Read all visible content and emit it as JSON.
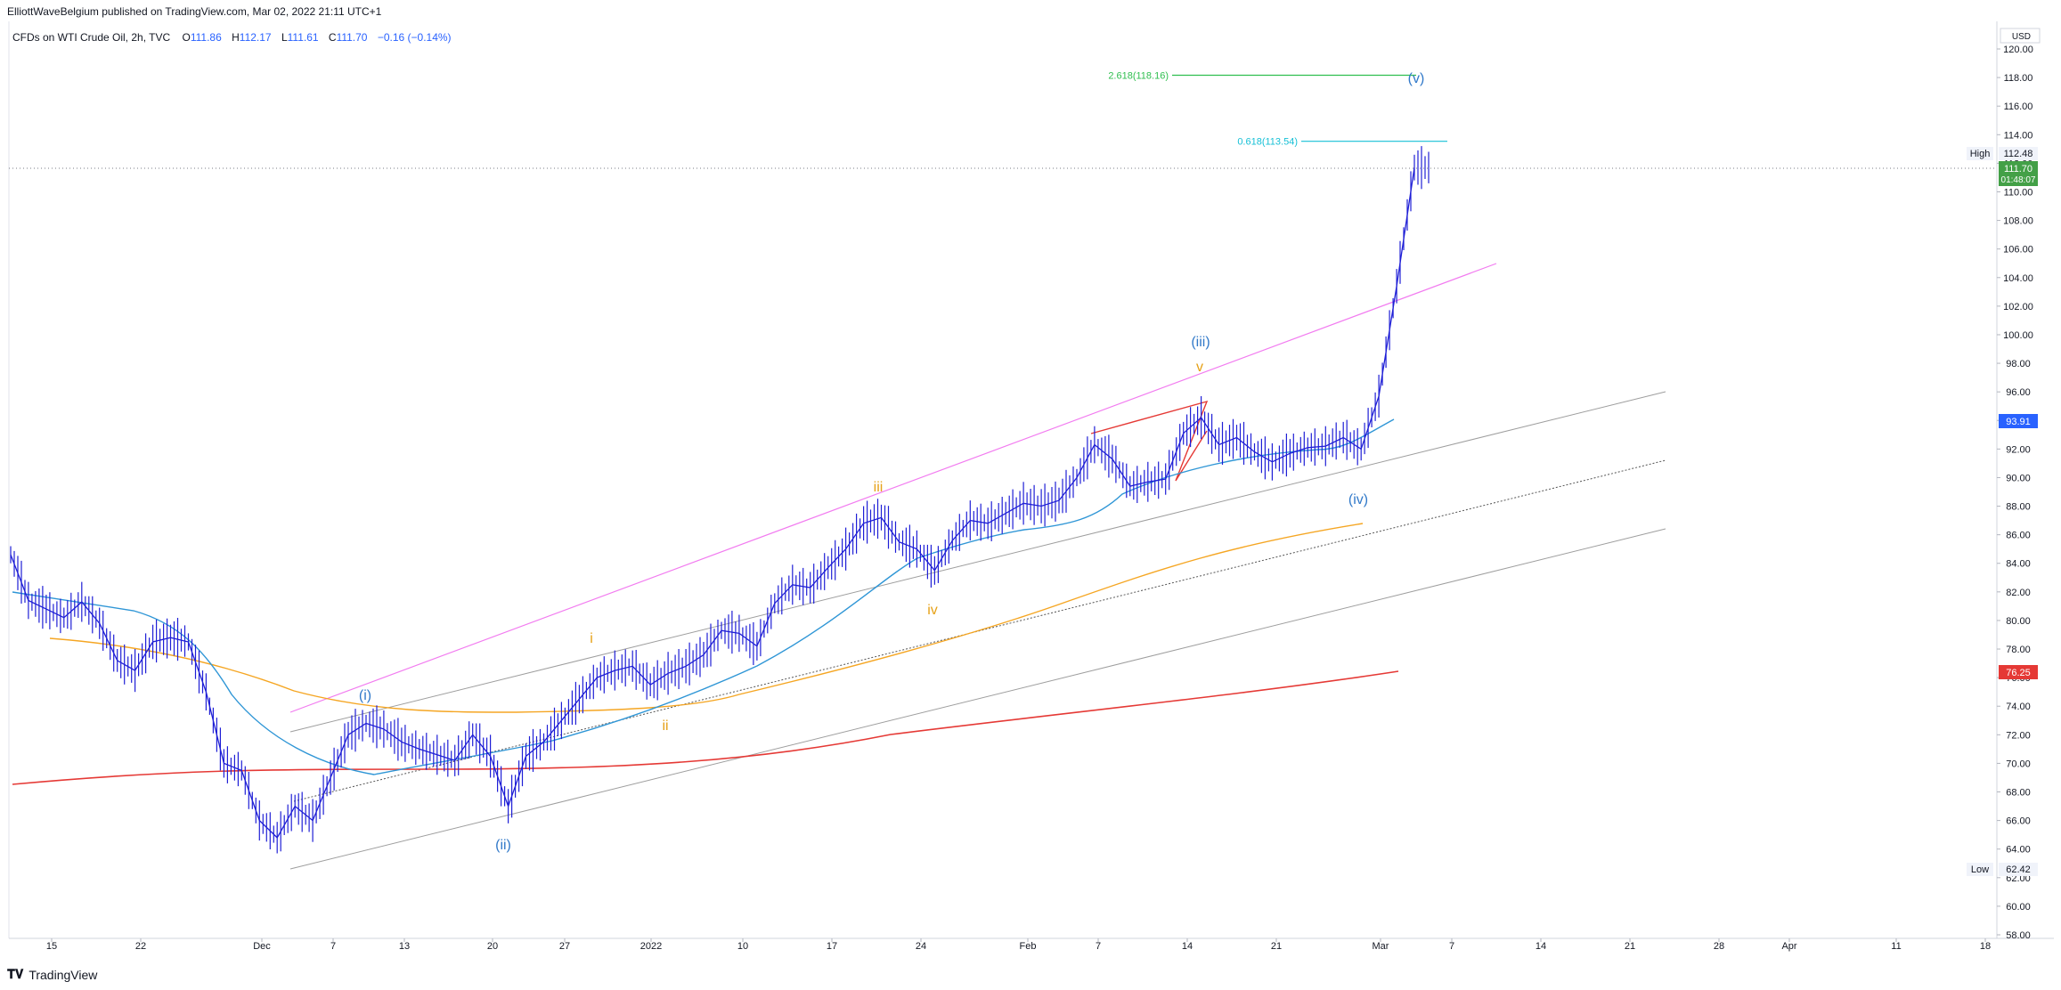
{
  "header": {
    "published": "ElliottWaveBelgium published on TradingView.com, Mar 02, 2022 21:11 UTC+1",
    "symbol": "CFDs on WTI Crude Oil, 2h, TVC",
    "o_label": "O",
    "o": "111.86",
    "h_label": "H",
    "h": "112.17",
    "l_label": "L",
    "l": "111.61",
    "c_label": "C",
    "c": "111.70",
    "change": "−0.16 (−0.14%)"
  },
  "footer": {
    "brand": "TradingView",
    "brand_icon": "tradingview-logo-icon"
  },
  "colors": {
    "candles": "#1f1fd6",
    "ema_blue": "#2f96d6",
    "ma_orange": "#f5a623",
    "ma_red": "#e53935",
    "channel_upper": "#f27cf0",
    "channel_gray": "#9e9e9e",
    "fib_green": "#2fbf4f",
    "fib_cyan": "#16c0d6",
    "label_blue": "#3179c9",
    "label_orange": "#e6a117",
    "price_badge": "#43a047",
    "red_badge": "#e53935",
    "blue_badge": "#2962ff"
  },
  "chart_data": {
    "type": "line",
    "title": "CFDs on WTI Crude Oil, 2h, TVC",
    "currency": "USD",
    "x_axis_ticks": [
      "15",
      "22",
      "Dec",
      "7",
      "13",
      "20",
      "27",
      "2022",
      "10",
      "17",
      "24",
      "Feb",
      "7",
      "14",
      "21",
      "Mar",
      "7",
      "14",
      "21",
      "28",
      "Apr",
      "11",
      "18"
    ],
    "y_axis_ticks": [
      "120.00",
      "118.00",
      "116.00",
      "114.00",
      "112.00",
      "110.00",
      "108.00",
      "106.00",
      "104.00",
      "102.00",
      "100.00",
      "98.00",
      "96.00",
      "94.00",
      "92.00",
      "90.00",
      "88.00",
      "86.00",
      "84.00",
      "82.00",
      "80.00",
      "78.00",
      "76.00",
      "74.00",
      "72.00",
      "70.00",
      "68.00",
      "66.00",
      "64.00",
      "62.00",
      "60.00",
      "58.00"
    ],
    "ylim": [
      57.5,
      121.5
    ],
    "grid": false,
    "series": [
      {
        "values_key": "price",
        "points": [
          [
            "Nov 10",
            84.6
          ],
          [
            "Nov 11",
            81.4
          ],
          [
            "Nov 14",
            80.8
          ],
          [
            "Nov 16",
            80.2
          ],
          [
            "Nov 17",
            81.3
          ],
          [
            "Nov 18",
            79.8
          ],
          [
            "Nov 19",
            77.2
          ],
          [
            "Nov 22",
            76.5
          ],
          [
            "Nov 23",
            78.5
          ],
          [
            "Nov 24",
            78.8
          ],
          [
            "Nov 25",
            78.5
          ],
          [
            "Nov 26",
            75.0
          ],
          [
            "Nov 26b",
            70.0
          ],
          [
            "Nov 29",
            69.5
          ],
          [
            "Nov 30",
            66.0
          ],
          [
            "Dec 1",
            64.8
          ],
          [
            "Dec 2",
            67.0
          ],
          [
            "Dec 3",
            66.0
          ],
          [
            "Dec 6",
            69.0
          ],
          [
            "Dec 7",
            72.0
          ],
          [
            "Dec 8",
            72.8
          ],
          [
            "Dec 9",
            72.4
          ],
          [
            "Dec 10",
            71.5
          ],
          [
            "Dec 13",
            71.0
          ],
          [
            "Dec 14",
            70.6
          ],
          [
            "Dec 15",
            70.2
          ],
          [
            "Dec 16",
            72.0
          ],
          [
            "Dec 17",
            70.5
          ],
          [
            "Dec 20",
            67.0
          ],
          [
            "Dec 21",
            70.5
          ],
          [
            "Dec 22",
            71.5
          ],
          [
            "Dec 23",
            73.0
          ],
          [
            "Dec 27",
            74.5
          ],
          [
            "Dec 28",
            76.0
          ],
          [
            "Dec 29",
            76.5
          ],
          [
            "Dec 30",
            76.8
          ],
          [
            "Dec 31",
            75.5
          ],
          [
            "Jan 3",
            76.3
          ],
          [
            "Jan 4",
            76.8
          ],
          [
            "Jan 5",
            77.6
          ],
          [
            "Jan 6",
            79.3
          ],
          [
            "Jan 7",
            79.1
          ],
          [
            "Jan 10",
            78.2
          ],
          [
            "Jan 11",
            81.2
          ],
          [
            "Jan 12",
            82.5
          ],
          [
            "Jan 13",
            82.3
          ],
          [
            "Jan 14",
            83.7
          ],
          [
            "Jan 17",
            85.0
          ],
          [
            "Jan 18",
            86.8
          ],
          [
            "Jan 19",
            87.2
          ],
          [
            "Jan 20",
            85.5
          ],
          [
            "Jan 21",
            85.0
          ],
          [
            "Jan 24",
            83.5
          ],
          [
            "Jan 25",
            85.6
          ],
          [
            "Jan 26",
            87.0
          ],
          [
            "Jan 27",
            86.8
          ],
          [
            "Jan 28",
            87.5
          ],
          [
            "Jan 31",
            88.2
          ],
          [
            "Feb 1",
            88.0
          ],
          [
            "Feb 2",
            88.4
          ],
          [
            "Feb 3",
            90.0
          ],
          [
            "Feb 4",
            92.3
          ],
          [
            "Feb 7",
            91.3
          ],
          [
            "Feb 8",
            89.4
          ],
          [
            "Feb 9",
            89.7
          ],
          [
            "Feb 10",
            89.9
          ],
          [
            "Feb 11",
            93.1
          ],
          [
            "Feb 14",
            94.2
          ],
          [
            "Feb 15",
            92.3
          ],
          [
            "Feb 16",
            92.8
          ],
          [
            "Feb 17",
            91.8
          ],
          [
            "Feb 18",
            91.1
          ],
          [
            "Feb 21",
            91.7
          ],
          [
            "Feb 22",
            92.1
          ],
          [
            "Feb 23",
            92.2
          ],
          [
            "Feb 24",
            92.8
          ],
          [
            "Feb 25",
            92.0
          ],
          [
            "Feb 28",
            95.7
          ],
          [
            "Mar 1",
            103.4
          ],
          [
            "Mar 2",
            111.7
          ]
        ]
      }
    ],
    "price_levels": {
      "high_label": "High",
      "high": "112.48",
      "current": "111.70",
      "countdown": "01:48:07",
      "ema_value": "93.91",
      "ma_red_value": "76.25",
      "low_label": "Low",
      "low": "62.42"
    },
    "fib_levels": [
      {
        "label": "2.618(118.16)",
        "value": 118.16
      },
      {
        "label": "0.618(113.54)",
        "value": 113.54
      }
    ],
    "wave_labels": [
      {
        "text": "(i)",
        "color": "blue"
      },
      {
        "text": "(ii)",
        "color": "blue"
      },
      {
        "text": "(iii)",
        "color": "blue"
      },
      {
        "text": "(iv)",
        "color": "blue"
      },
      {
        "text": "(v)",
        "color": "blue"
      },
      {
        "text": "i",
        "color": "orange"
      },
      {
        "text": "ii",
        "color": "orange"
      },
      {
        "text": "iii",
        "color": "orange"
      },
      {
        "text": "iv",
        "color": "orange"
      },
      {
        "text": "v",
        "color": "orange"
      }
    ]
  }
}
